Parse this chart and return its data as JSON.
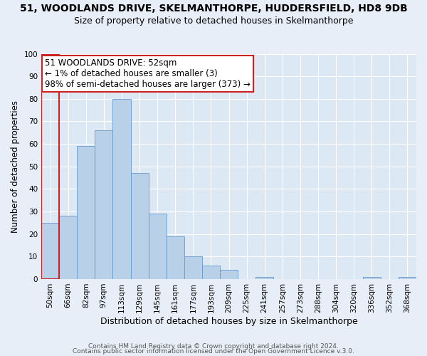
{
  "title": "51, WOODLANDS DRIVE, SKELMANTHORPE, HUDDERSFIELD, HD8 9DB",
  "subtitle": "Size of property relative to detached houses in Skelmanthorpe",
  "xlabel": "Distribution of detached houses by size in Skelmanthorpe",
  "ylabel": "Number of detached properties",
  "bin_labels": [
    "50sqm",
    "66sqm",
    "82sqm",
    "97sqm",
    "113sqm",
    "129sqm",
    "145sqm",
    "161sqm",
    "177sqm",
    "193sqm",
    "209sqm",
    "225sqm",
    "241sqm",
    "257sqm",
    "273sqm",
    "288sqm",
    "304sqm",
    "320sqm",
    "336sqm",
    "352sqm",
    "368sqm"
  ],
  "bar_heights": [
    25,
    28,
    59,
    66,
    80,
    47,
    29,
    19,
    10,
    6,
    4,
    0,
    1,
    0,
    0,
    0,
    0,
    0,
    1,
    0,
    1
  ],
  "bar_color": "#b8d0e8",
  "bar_edge_color": "#6699cc",
  "highlight_color": "#cc2222",
  "annotation_text": "51 WOODLANDS DRIVE: 52sqm\n← 1% of detached houses are smaller (3)\n98% of semi-detached houses are larger (373) →",
  "annotation_box_color": "#ffffff",
  "annotation_box_edge": "#cc2222",
  "ylim": [
    0,
    100
  ],
  "yticks": [
    0,
    10,
    20,
    30,
    40,
    50,
    60,
    70,
    80,
    90,
    100
  ],
  "background_color": "#e8eef8",
  "plot_bg_color": "#dde8f5",
  "footer_line1": "Contains HM Land Registry data © Crown copyright and database right 2024.",
  "footer_line2": "Contains public sector information licensed under the Open Government Licence v.3.0.",
  "title_fontsize": 10,
  "subtitle_fontsize": 9,
  "xlabel_fontsize": 9,
  "ylabel_fontsize": 8.5,
  "tick_fontsize": 7.5,
  "annotation_fontsize": 8.5,
  "footer_fontsize": 6.5
}
